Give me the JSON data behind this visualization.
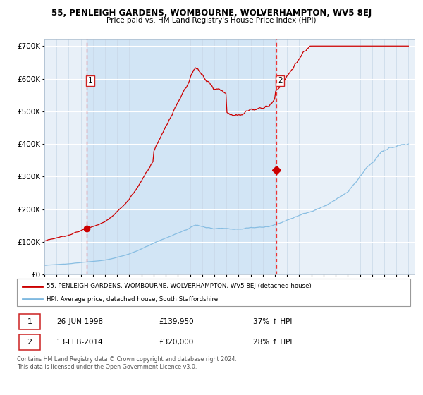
{
  "title": "55, PENLEIGH GARDENS, WOMBOURNE, WOLVERHAMPTON, WV5 8EJ",
  "subtitle": "Price paid vs. HM Land Registry's House Price Index (HPI)",
  "legend_line1": "55, PENLEIGH GARDENS, WOMBOURNE, WOLVERHAMPTON, WV5 8EJ (detached house)",
  "legend_line2": "HPI: Average price, detached house, South Staffordshire",
  "annotation1_date": "26-JUN-1998",
  "annotation1_price": "£139,950",
  "annotation1_hpi": "37% ↑ HPI",
  "annotation2_date": "13-FEB-2014",
  "annotation2_price": "£320,000",
  "annotation2_hpi": "28% ↑ HPI",
  "sale1_year": 1998.49,
  "sale1_price": 139950,
  "sale2_year": 2014.12,
  "sale2_price": 320000,
  "hpi_color": "#7fb9e0",
  "price_color": "#cc0000",
  "vline_color": "#ee3333",
  "bg_color": "#e8f0f8",
  "span_color": "#d0e4f5",
  "ylim": [
    0,
    720000
  ],
  "yticks": [
    0,
    100000,
    200000,
    300000,
    400000,
    500000,
    600000,
    700000
  ],
  "ytick_labels": [
    "£0",
    "£100K",
    "£200K",
    "£300K",
    "£400K",
    "£500K",
    "£600K",
    "£700K"
  ],
  "footer": "Contains HM Land Registry data © Crown copyright and database right 2024.\nThis data is licensed under the Open Government Licence v3.0."
}
